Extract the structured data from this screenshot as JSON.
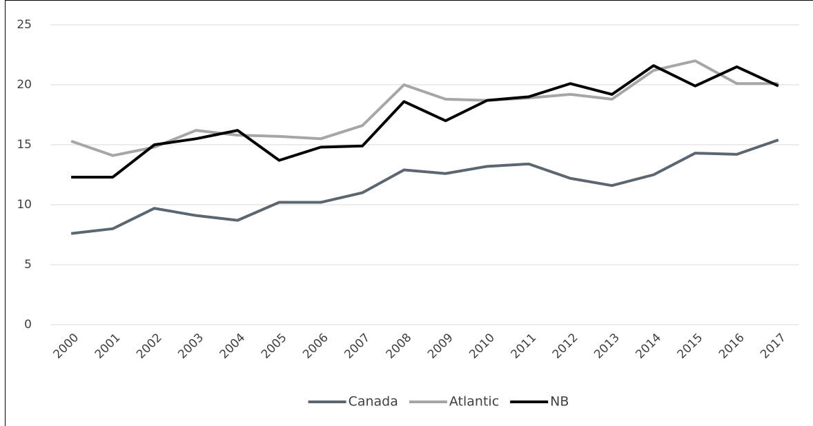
{
  "chart_data": {
    "type": "line",
    "categories": [
      "2000",
      "2001",
      "2002",
      "2003",
      "2004",
      "2005",
      "2006",
      "2007",
      "2008",
      "2009",
      "2010",
      "2011",
      "2012",
      "2013",
      "2014",
      "2015",
      "2016",
      "2017"
    ],
    "series": [
      {
        "name": "Canada",
        "color": "#5b6670",
        "values": [
          7.6,
          8.0,
          9.7,
          9.1,
          8.7,
          10.2,
          10.2,
          11.0,
          12.9,
          12.6,
          13.2,
          13.4,
          12.2,
          11.6,
          12.5,
          14.3,
          14.2,
          15.4
        ]
      },
      {
        "name": "Atlantic",
        "color": "#a6a6a6",
        "values": [
          15.3,
          14.1,
          14.8,
          16.2,
          15.8,
          15.7,
          15.5,
          16.6,
          20.0,
          18.8,
          18.7,
          18.9,
          19.2,
          18.8,
          21.2,
          22.0,
          20.1,
          20.1
        ]
      },
      {
        "name": "NB",
        "color": "#000000",
        "values": [
          12.3,
          12.3,
          15.0,
          15.5,
          16.2,
          13.7,
          14.8,
          14.9,
          18.6,
          17.0,
          18.7,
          19.0,
          20.1,
          19.2,
          21.6,
          19.9,
          21.5,
          19.9
        ]
      }
    ],
    "ylim": [
      0,
      25
    ],
    "yticks": [
      0,
      5,
      10,
      15,
      20,
      25
    ],
    "grid": true,
    "legend": "bottom"
  }
}
